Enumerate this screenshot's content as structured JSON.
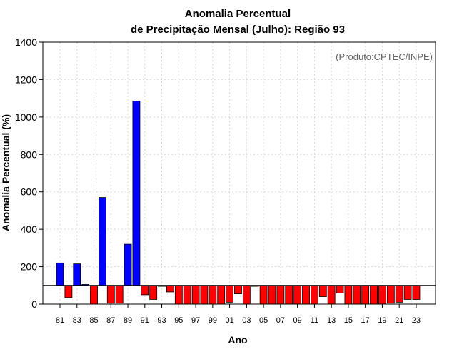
{
  "chart_data": {
    "type": "bar",
    "title_line1": "Anomalia Percentual",
    "title_line2": "de Precipitação Mensal (Julho): Região 93",
    "credit": "(Produto:CPTEC/INPE)",
    "xlabel": "Ano",
    "ylabel": "Anomalia Percentual (%)",
    "ylim": [
      0,
      1400
    ],
    "baseline": 100,
    "grid": true,
    "yticks": [
      0,
      200,
      400,
      600,
      800,
      1000,
      1200,
      1400
    ],
    "categories": [
      "81",
      "82",
      "83",
      "84",
      "85",
      "86",
      "87",
      "88",
      "89",
      "90",
      "91",
      "92",
      "93",
      "94",
      "95",
      "96",
      "97",
      "98",
      "99",
      "00",
      "01",
      "02",
      "03",
      "04",
      "05",
      "06",
      "07",
      "08",
      "09",
      "10",
      "11",
      "12",
      "13",
      "14",
      "15",
      "16",
      "17",
      "18",
      "19",
      "20",
      "21",
      "22",
      "23"
    ],
    "xtick_labels": [
      "81",
      "83",
      "85",
      "87",
      "89",
      "91",
      "93",
      "95",
      "97",
      "99",
      "01",
      "03",
      "05",
      "07",
      "09",
      "11",
      "13",
      "15",
      "17",
      "19",
      "21",
      "23"
    ],
    "values": [
      220,
      35,
      215,
      105,
      0,
      570,
      5,
      5,
      320,
      1085,
      50,
      25,
      95,
      65,
      0,
      0,
      0,
      0,
      0,
      0,
      10,
      55,
      0,
      95,
      0,
      0,
      0,
      0,
      0,
      0,
      0,
      40,
      0,
      60,
      0,
      0,
      0,
      0,
      0,
      5,
      10,
      25,
      25
    ],
    "colors": {
      "above": "#0000ff",
      "below": "#ff0000",
      "stroke": "#000000",
      "grid": "#d9d9d9"
    }
  }
}
